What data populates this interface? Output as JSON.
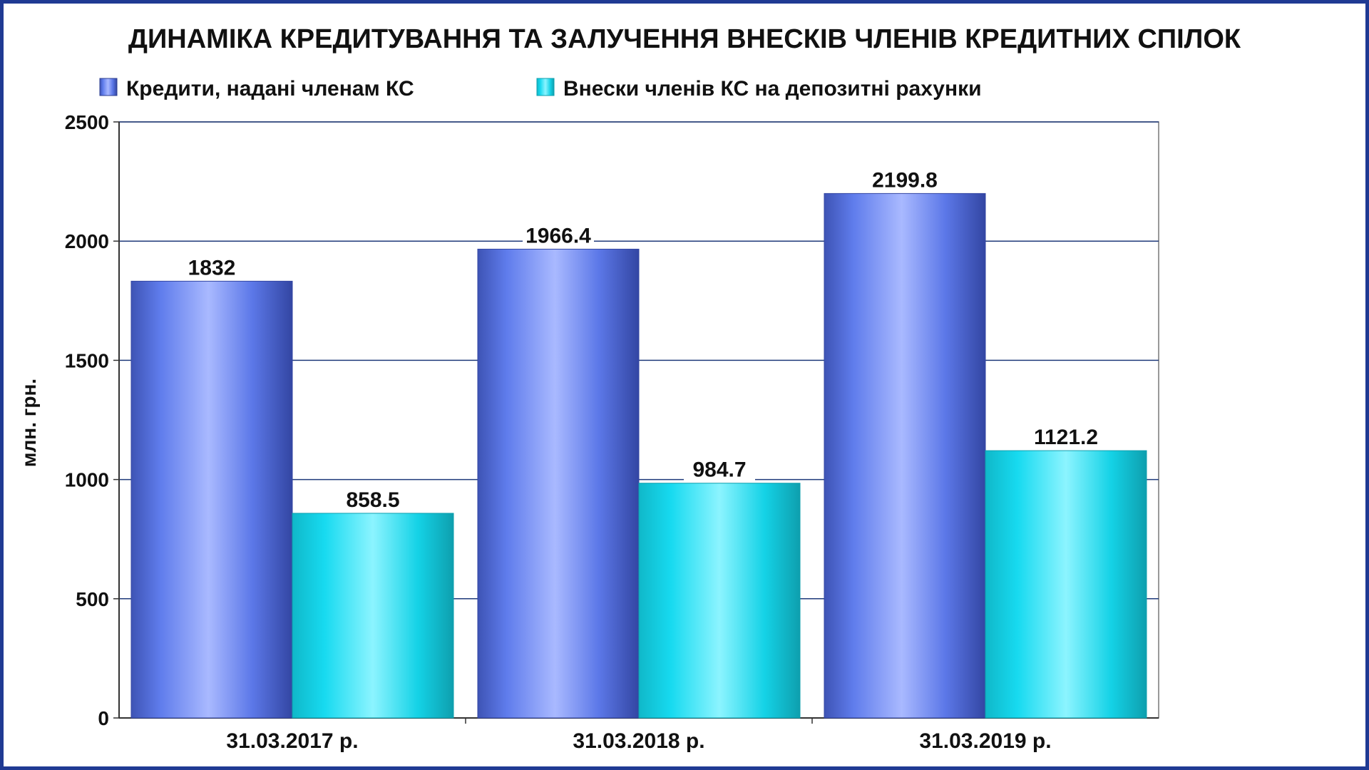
{
  "chart_data": {
    "type": "bar",
    "title": "ДИНАМІКА КРЕДИТУВАННЯ ТА ЗАЛУЧЕННЯ ВНЕСКІВ ЧЛЕНІВ КРЕДИТНИХ СПІЛОК",
    "ylabel": "млн. грн.",
    "xlabel": "",
    "categories": [
      "31.03.2017 р.",
      "31.03.2018 р.",
      "31.03.2019 р."
    ],
    "series": [
      {
        "name": "Кредити, надані членам КС",
        "values": [
          1832,
          1966.4,
          2199.8
        ],
        "color": "#5b78e6"
      },
      {
        "name": "Внески членів КС на депозитні рахунки",
        "values": [
          858.5,
          984.7,
          1121.2
        ],
        "color": "#18d4e8"
      }
    ],
    "value_labels": [
      [
        "1832",
        "1966.4",
        "2199.8"
      ],
      [
        "858.5",
        "984.7",
        "1121.2"
      ]
    ],
    "ylim": [
      0,
      2500
    ],
    "yticks": [
      0,
      500,
      1000,
      1500,
      2000,
      2500
    ],
    "ytick_labels": [
      "0",
      "500",
      "1000",
      "1500",
      "2000",
      "2500"
    ],
    "grid": true,
    "legend_position": "top"
  }
}
